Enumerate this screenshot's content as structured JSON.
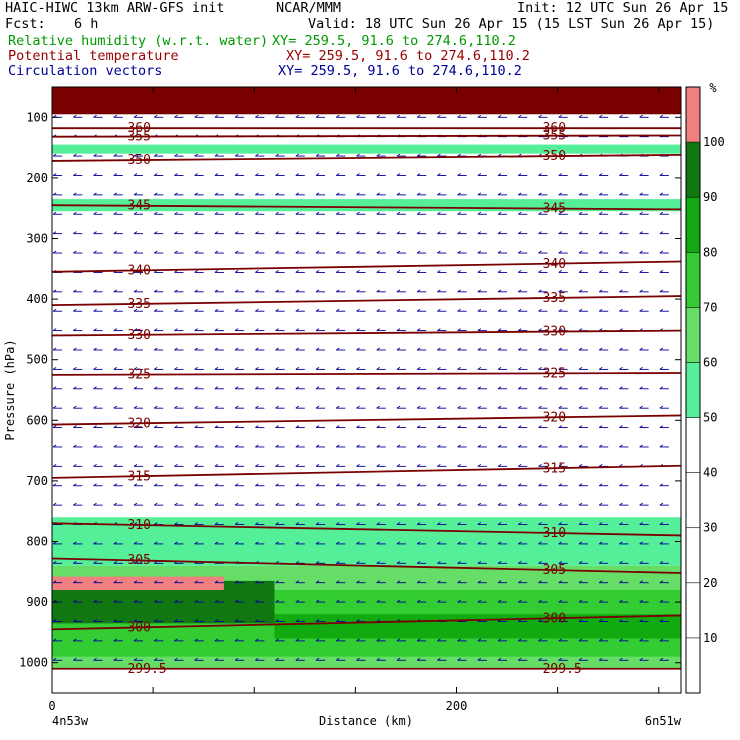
{
  "header": {
    "title_left": "HAIC-HIWC 13km ARW-GFS init",
    "org": "NCAR/MMM",
    "init": "Init: 12 UTC Sun 26 Apr 15",
    "fcst_label": "Fcst:",
    "fcst_value": "6 h",
    "valid": "Valid: 18 UTC Sun 26 Apr 15 (15 LST Sun 26 Apr 15)",
    "fields": [
      {
        "name": "Relative humidity (w.r.t. water)",
        "xy": "XY= 259.5, 91.6 to 274.6,110.2",
        "color": "#009900"
      },
      {
        "name": "Potential temperature",
        "xy": "XY= 259.5, 91.6 to 274.6,110.2",
        "color": "#990000"
      },
      {
        "name": "Circulation vectors",
        "xy": "XY= 259.5, 91.6 to 274.6,110.2",
        "color": "#000099"
      }
    ]
  },
  "chart_data": {
    "type": "heatmap",
    "xlabel": "Distance (km)",
    "ylabel": "Pressure (hPa)",
    "x_ticks": [
      0,
      200
    ],
    "x_range": [
      0,
      311
    ],
    "x_end_labels": [
      "4n53w",
      "6n51w"
    ],
    "y_ticks": [
      100,
      200,
      300,
      400,
      500,
      600,
      700,
      800,
      900,
      1000
    ],
    "y_range": [
      50,
      1050
    ],
    "colorbar": {
      "unit": "%",
      "levels": [
        10,
        20,
        30,
        40,
        50,
        60,
        70,
        80,
        90,
        100
      ],
      "colors": [
        {
          "min": 50,
          "max": 60,
          "color": "#55ee99"
        },
        {
          "min": 60,
          "max": 70,
          "color": "#66dd66"
        },
        {
          "min": 70,
          "max": 80,
          "color": "#33cc33"
        },
        {
          "min": 80,
          "max": 90,
          "color": "#11aa11"
        },
        {
          "min": 90,
          "max": 100,
          "color": "#117711"
        },
        {
          "min": 100,
          "max": 110,
          "color": "#f08080"
        }
      ]
    },
    "rh_regions": [
      {
        "rh": 100,
        "p_top": 50,
        "p_bot": 95,
        "x0": 0,
        "x1": 311,
        "color": "#7a0000"
      },
      {
        "rh": 55,
        "p_top": 145,
        "p_bot": 160,
        "x0": 0,
        "x1": 311
      },
      {
        "rh": 55,
        "p_top": 235,
        "p_bot": 255,
        "x0": 0,
        "x1": 311
      },
      {
        "rh": 55,
        "p_top": 760,
        "p_bot": 840,
        "x0": 0,
        "x1": 311
      },
      {
        "rh": 65,
        "p_top": 840,
        "p_bot": 1010,
        "x0": 0,
        "x1": 311
      },
      {
        "rh": 75,
        "p_top": 880,
        "p_bot": 990,
        "x0": 0,
        "x1": 311
      },
      {
        "rh": 85,
        "p_top": 920,
        "p_bot": 960,
        "x0": 110,
        "x1": 311
      },
      {
        "rh": 95,
        "p_top": 865,
        "p_bot": 935,
        "x0": 0,
        "x1": 110
      },
      {
        "rh": 100,
        "p_top": 858,
        "p_bot": 880,
        "x0": 0,
        "x1": 85
      }
    ],
    "theta_contours": [
      {
        "label": "360",
        "p0": 118,
        "p1": 118
      },
      {
        "label": "355",
        "p0": 132,
        "p1": 130
      },
      {
        "label": "350",
        "p0": 172,
        "p1": 162
      },
      {
        "label": "345",
        "p0": 245,
        "p1": 252
      },
      {
        "label": "340",
        "p0": 355,
        "p1": 338
      },
      {
        "label": "335",
        "p0": 410,
        "p1": 395
      },
      {
        "label": "330",
        "p0": 460,
        "p1": 452
      },
      {
        "label": "325",
        "p0": 525,
        "p1": 522
      },
      {
        "label": "320",
        "p0": 607,
        "p1": 592
      },
      {
        "label": "315",
        "p0": 695,
        "p1": 675
      },
      {
        "label": "310",
        "p0": 770,
        "p1": 790
      },
      {
        "label": "305",
        "p0": 828,
        "p1": 852
      },
      {
        "label": "300",
        "p0": 945,
        "p1": 922
      },
      {
        "label": "299.5",
        "p0": 1010,
        "p1": 1010
      }
    ],
    "wind_vectors": {
      "mean_u": -1,
      "mean_w": 0
    }
  }
}
